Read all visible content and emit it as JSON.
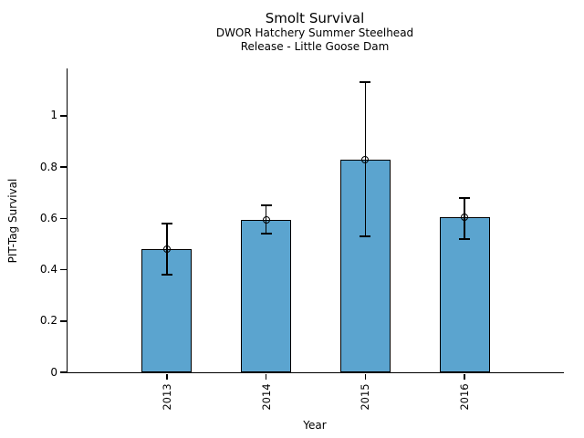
{
  "chart_data": {
    "type": "bar",
    "title": "Smolt Survival",
    "subtitle": [
      "DWOR Hatchery Summer Steelhead",
      "Release - Little Goose Dam"
    ],
    "xlabel": "Year",
    "ylabel": "PIT-Tag Survival",
    "categories": [
      "2013",
      "2014",
      "2015",
      "2016"
    ],
    "values": [
      0.48,
      0.595,
      0.83,
      0.605
    ],
    "error_bars": {
      "low": [
        0.38,
        0.54,
        0.53,
        0.52
      ],
      "high": [
        0.58,
        0.65,
        1.13,
        0.68
      ]
    },
    "marker": "open-circle-at-bar-top",
    "yticks": [
      0,
      0.2,
      0.4,
      0.6,
      0.8,
      1
    ],
    "ytick_labels": [
      "0",
      "0.2",
      "0.4",
      "0.6",
      "0.8",
      "1"
    ],
    "ylim": [
      0,
      1.184
    ],
    "grid": false,
    "legend": null,
    "bar_color": "#5BA4CF",
    "bar_edge_color": "#000000",
    "error_color": "#000000",
    "text_color": "#000000"
  }
}
